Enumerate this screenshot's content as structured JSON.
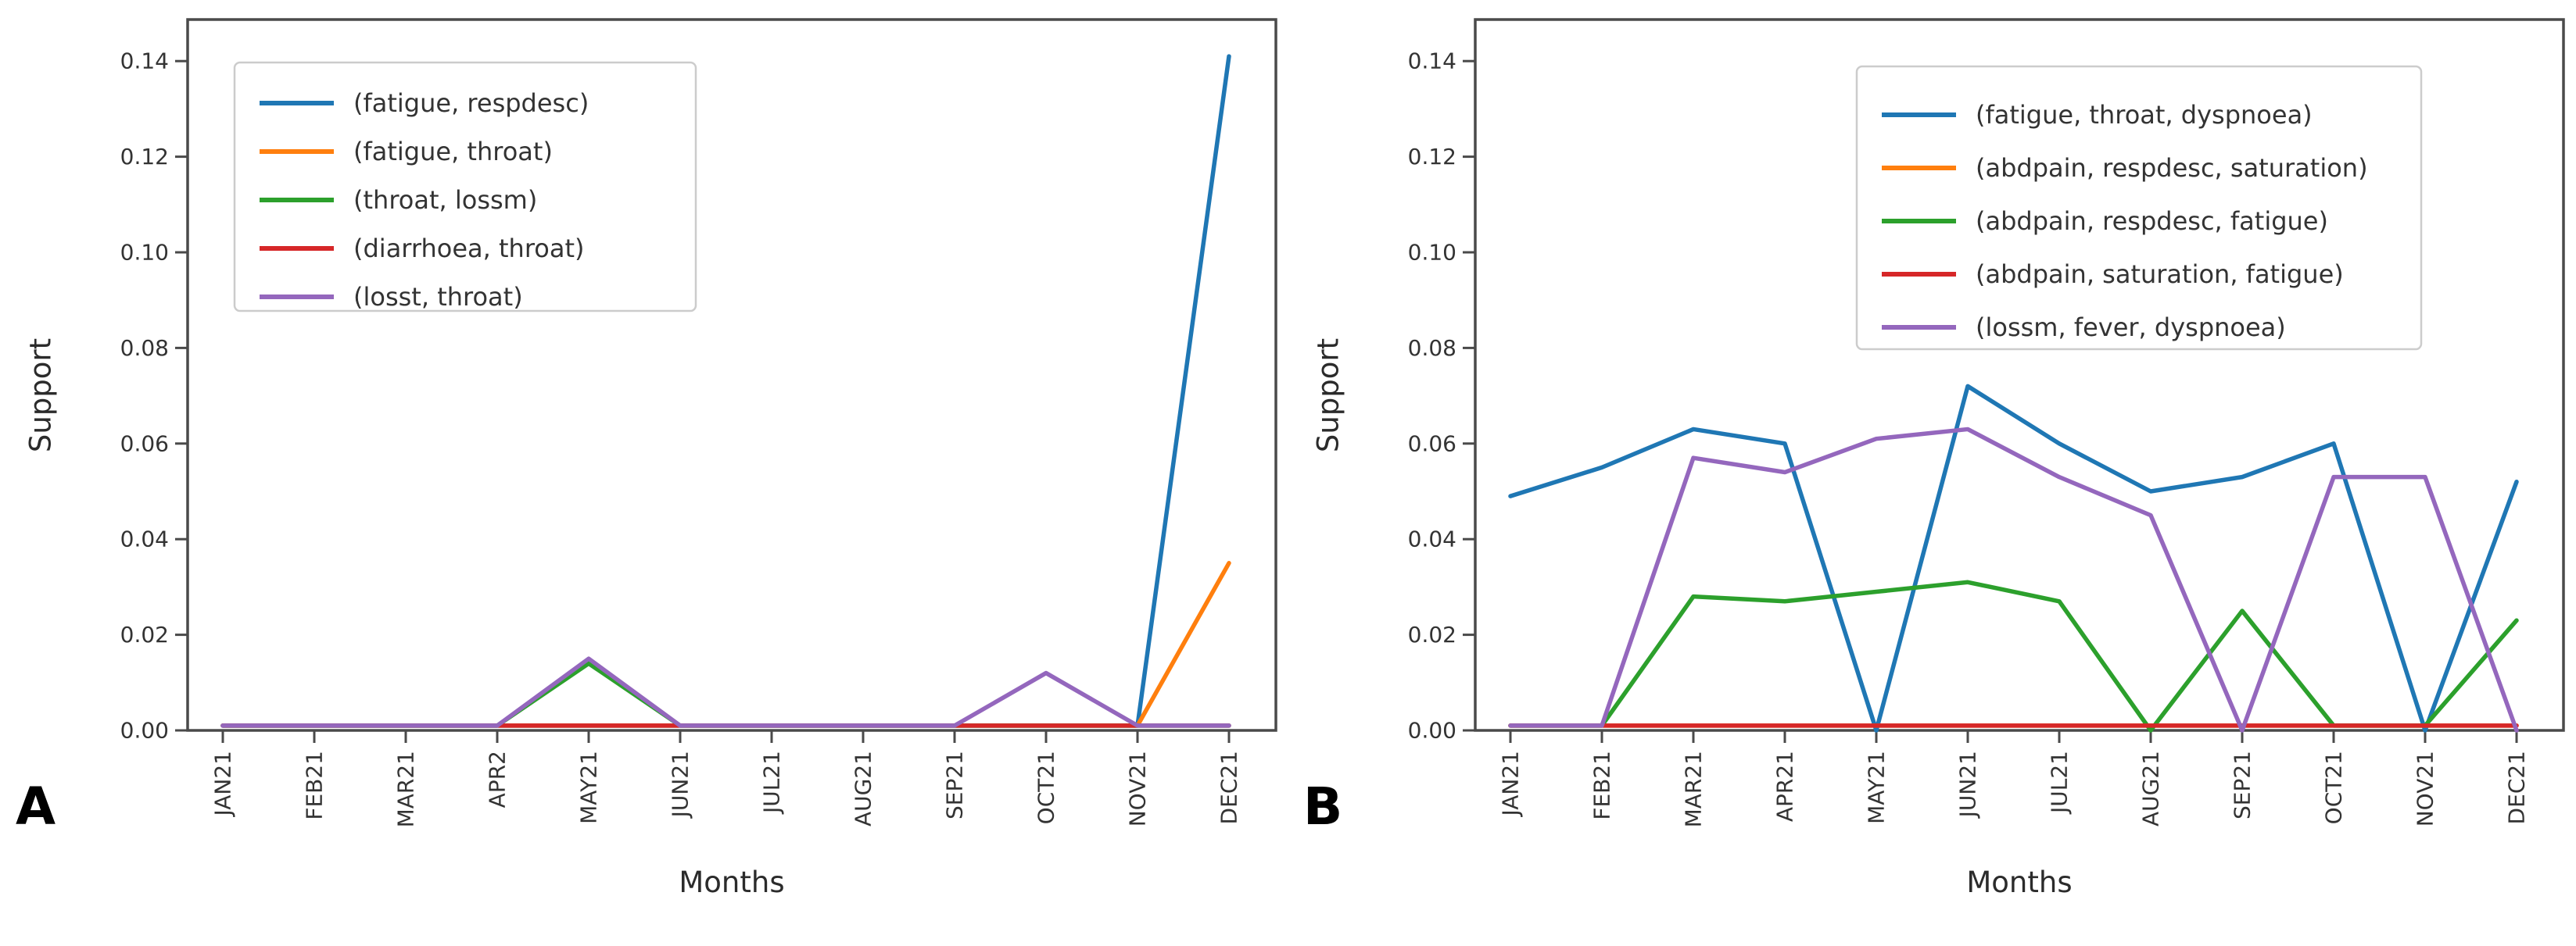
{
  "figure": {
    "description": "Two-panel line chart of itemset support per month in 2021",
    "panels": [
      {
        "panel_label": "A",
        "xlabel": "Months",
        "ylabel": "Support"
      },
      {
        "panel_label": "B",
        "xlabel": "Months",
        "ylabel": "Support"
      }
    ]
  },
  "chart_data": [
    {
      "id": "A",
      "type": "line",
      "title": "",
      "panel_label": "A",
      "xlabel": "Months",
      "ylabel": "Support",
      "categories": [
        "JAN21",
        "FEB21",
        "MAR21",
        "APR2",
        "MAY21",
        "JUN21",
        "JUL21",
        "AUG21",
        "SEP21",
        "OCT21",
        "NOV21",
        "DEC21"
      ],
      "ytick_labels": [
        "0.00",
        "0.02",
        "0.04",
        "0.06",
        "0.08",
        "0.10",
        "0.12",
        "0.14"
      ],
      "yticks": [
        0.0,
        0.02,
        0.04,
        0.06,
        0.08,
        0.1,
        0.12,
        0.14
      ],
      "ylim": [
        0,
        0.1487
      ],
      "grid": false,
      "legend_position": "upper left",
      "series": [
        {
          "name": "(fatigue, respdesc)",
          "color": "#1f77b4",
          "values": [
            0.001,
            0.001,
            0.001,
            0.001,
            0.001,
            0.001,
            0.001,
            0.001,
            0.001,
            0.001,
            0.001,
            0.141
          ]
        },
        {
          "name": "(fatigue, throat)",
          "color": "#ff7f0e",
          "values": [
            0.001,
            0.001,
            0.001,
            0.001,
            0.001,
            0.001,
            0.001,
            0.001,
            0.001,
            0.001,
            0.001,
            0.035
          ]
        },
        {
          "name": "(throat, lossm)",
          "color": "#2ca02c",
          "values": [
            0.001,
            0.001,
            0.001,
            0.001,
            0.014,
            0.001,
            0.001,
            0.001,
            0.001,
            0.001,
            0.001,
            0.001
          ]
        },
        {
          "name": "(diarrhoea, throat)",
          "color": "#d62728",
          "values": [
            0.001,
            0.001,
            0.001,
            0.001,
            0.001,
            0.001,
            0.001,
            0.001,
            0.001,
            0.001,
            0.001,
            0.001
          ]
        },
        {
          "name": "(losst, throat)",
          "color": "#9467bd",
          "values": [
            0.001,
            0.001,
            0.001,
            0.001,
            0.015,
            0.001,
            0.001,
            0.001,
            0.001,
            0.012,
            0.001,
            0.001
          ]
        }
      ]
    },
    {
      "id": "B",
      "type": "line",
      "title": "",
      "panel_label": "B",
      "xlabel": "Months",
      "ylabel": "Support",
      "categories": [
        "JAN21",
        "FEB21",
        "MAR21",
        "APR21",
        "MAY21",
        "JUN21",
        "JUL21",
        "AUG21",
        "SEP21",
        "OCT21",
        "NOV21",
        "DEC21"
      ],
      "ytick_labels": [
        "0.00",
        "0.02",
        "0.04",
        "0.06",
        "0.08",
        "0.10",
        "0.12",
        "0.14"
      ],
      "yticks": [
        0.0,
        0.02,
        0.04,
        0.06,
        0.08,
        0.1,
        0.12,
        0.14
      ],
      "ylim": [
        0,
        0.1487
      ],
      "grid": false,
      "legend_position": "upper right",
      "series": [
        {
          "name": "(fatigue, throat, dyspnoea)",
          "color": "#1f77b4",
          "values": [
            0.049,
            0.055,
            0.063,
            0.06,
            0.0,
            0.072,
            0.06,
            0.05,
            0.053,
            0.06,
            0.0,
            0.052
          ]
        },
        {
          "name": "(abdpain, respdesc, saturation)",
          "color": "#ff7f0e",
          "values": [
            0.001,
            0.001,
            0.001,
            0.001,
            0.001,
            0.001,
            0.001,
            0.001,
            0.001,
            0.001,
            0.001,
            0.001
          ]
        },
        {
          "name": "(abdpain, respdesc, fatigue)",
          "color": "#2ca02c",
          "values": [
            0.001,
            0.001,
            0.028,
            0.027,
            0.029,
            0.031,
            0.027,
            0.0,
            0.025,
            0.001,
            0.001,
            0.023
          ]
        },
        {
          "name": "(abdpain, saturation, fatigue)",
          "color": "#d62728",
          "values": [
            0.001,
            0.001,
            0.001,
            0.001,
            0.001,
            0.001,
            0.001,
            0.001,
            0.001,
            0.001,
            0.001,
            0.001
          ]
        },
        {
          "name": "(lossm, fever, dyspnoea)",
          "color": "#9467bd",
          "values": [
            0.001,
            0.001,
            0.057,
            0.054,
            0.061,
            0.063,
            0.053,
            0.045,
            0.0,
            0.053,
            0.053,
            0.0
          ]
        }
      ]
    }
  ]
}
